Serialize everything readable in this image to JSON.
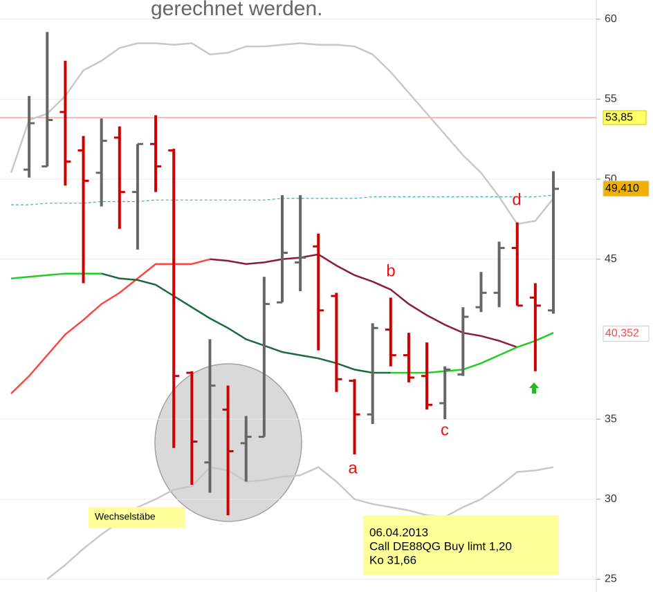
{
  "chart_data": {
    "type": "ohlc",
    "header_text": "gerechnet werden.",
    "categories": [
      null,
      null,
      null,
      null,
      null,
      null,
      null,
      null,
      null,
      null,
      null,
      null,
      null,
      null,
      null,
      null,
      null,
      null,
      null,
      null,
      null,
      null,
      null,
      null,
      null,
      null,
      null,
      null,
      null,
      null,
      null
    ],
    "open": [
      null,
      50.6,
      50.8,
      54.2,
      51.8,
      50.4,
      52.6,
      49.2,
      52.2,
      51.8,
      37.9,
      32.3,
      35.6,
      33.5,
      33.9,
      42.3,
      44.8,
      45.8,
      42.7,
      37.4,
      35.3,
      40.6,
      39.0,
      37.7,
      36.0,
      37.8,
      42.0,
      42.9,
      45.7,
      42.6,
      41.8
    ],
    "high": [
      null,
      55.2,
      59.2,
      57.4,
      52.7,
      53.8,
      53.3,
      52.2,
      54.0,
      51.9,
      38.0,
      40.0,
      37.1,
      35.2,
      43.9,
      49.0,
      49.0,
      46.6,
      42.9,
      37.5,
      41.0,
      42.6,
      40.4,
      39.8,
      38.3,
      42.0,
      44.2,
      46.1,
      47.3,
      43.5,
      50.5
    ],
    "low": [
      null,
      50.1,
      50.8,
      49.6,
      43.5,
      48.3,
      46.9,
      45.6,
      49.2,
      33.2,
      30.9,
      30.4,
      29.0,
      31.1,
      33.9,
      42.3,
      43.0,
      39.3,
      36.7,
      32.8,
      34.7,
      38.3,
      37.3,
      35.6,
      35.0,
      37.7,
      41.7,
      42.0,
      42.1,
      38.0,
      41.6
    ],
    "close": [
      null,
      53.5,
      53.7,
      51.1,
      49.9,
      52.4,
      49.2,
      52.2,
      50.8,
      37.7,
      33.6,
      37.1,
      33.0,
      33.9,
      42.2,
      45.4,
      45.1,
      41.8,
      37.5,
      35.3,
      40.7,
      39.0,
      37.6,
      35.9,
      38.1,
      41.4,
      42.9,
      45.7,
      42.1,
      42.1,
      49.4
    ],
    "up_color": "#666666",
    "down_color": "#cc0000",
    "lines": [
      {
        "color": "#c8c8c8",
        "dashed": false,
        "values": [
          50.4,
          53.7,
          54.1,
          55.2,
          56.8,
          57.4,
          58.2,
          58.5,
          58.5,
          58.4,
          58.5,
          57.8,
          57.9,
          58.3,
          58.3,
          58.4,
          58.5,
          58.4,
          58.4,
          58.3,
          57.8,
          56.7,
          55.4,
          54.1,
          52.8,
          51.5,
          50.4,
          48.9,
          47.2,
          47.4,
          48.8
        ]
      },
      {
        "color": "#c8c8c8",
        "dashed": false,
        "values": [
          null,
          null,
          25.0,
          25.9,
          26.9,
          27.8,
          28.6,
          29.5,
          30.0,
          30.6,
          30.8,
          32.0,
          31.8,
          31.1,
          31.2,
          31.4,
          31.5,
          32.0,
          31.1,
          30.0,
          29.7,
          29.5,
          29.3,
          29.0,
          28.9,
          29.5,
          30.0,
          30.8,
          31.7,
          31.8,
          32.0
        ]
      },
      {
        "color": "#ff4444",
        "dashed": false,
        "values": [
          36.6,
          37.7,
          39.0,
          40.3,
          41.2,
          42.2,
          42.9,
          43.8,
          44.7,
          44.7,
          44.7,
          45.0,
          null,
          null,
          null,
          null,
          null,
          null,
          null,
          null,
          null,
          null,
          null,
          null,
          null,
          null,
          null,
          null,
          null,
          null,
          null
        ]
      },
      {
        "color": "#8b1a3c",
        "dashed": false,
        "values": [
          null,
          null,
          null,
          null,
          null,
          null,
          null,
          null,
          null,
          null,
          null,
          45.0,
          44.9,
          44.7,
          44.8,
          45.0,
          45.1,
          45.3,
          44.6,
          44.0,
          43.6,
          43.1,
          42.2,
          41.5,
          40.9,
          40.4,
          40.2,
          39.9,
          39.5,
          null,
          null
        ]
      },
      {
        "color": "#22cc22",
        "dashed": false,
        "values": [
          43.8,
          43.9,
          44.0,
          44.1,
          44.1,
          44.1,
          null,
          null,
          null,
          null,
          null,
          null,
          null,
          null,
          null,
          null,
          null,
          null,
          null,
          null,
          null,
          37.9,
          37.9,
          37.9,
          38.0,
          38.1,
          38.5,
          39.0,
          39.5,
          39.9,
          40.4
        ]
      },
      {
        "color": "#1a6b3a",
        "dashed": false,
        "values": [
          null,
          null,
          null,
          null,
          null,
          44.1,
          43.8,
          43.7,
          43.4,
          42.7,
          42.0,
          41.3,
          40.7,
          40.0,
          39.6,
          39.2,
          39.0,
          38.8,
          38.5,
          38.1,
          37.9,
          37.9,
          null,
          null,
          null,
          null,
          null,
          null,
          null,
          null,
          null
        ]
      },
      {
        "color": "#44aabb",
        "dashed": true,
        "values": [
          48.4,
          48.4,
          48.5,
          48.5,
          48.5,
          48.6,
          48.6,
          48.6,
          48.7,
          48.7,
          48.7,
          48.7,
          48.7,
          48.7,
          48.7,
          48.8,
          48.8,
          48.8,
          48.8,
          48.8,
          48.9,
          48.9,
          48.9,
          48.9,
          48.9,
          48.9,
          48.9,
          48.9,
          48.9,
          48.9,
          49.0
        ]
      }
    ],
    "ylim": [
      24.2,
      61.2
    ],
    "yticks": [
      25,
      30,
      35,
      45,
      50,
      55,
      60
    ],
    "grid": true,
    "hline": {
      "value": 53.85,
      "label": "53,85",
      "color": "#ff8080"
    },
    "price_labels": [
      {
        "value": 49.41,
        "label": "49,410",
        "fill": "#f0b000",
        "text_color": "#000000"
      },
      {
        "value": 40.352,
        "label": "40,352",
        "fill": "#ffffff",
        "text_color": "#ff4444"
      }
    ],
    "annotations": [
      "a",
      "b",
      "c",
      "d"
    ],
    "circle_label": "Wechselstäbe",
    "note": [
      "06.04.2013",
      "Call DE88QG Buy limt 1,20",
      "Ko 31,66"
    ]
  }
}
